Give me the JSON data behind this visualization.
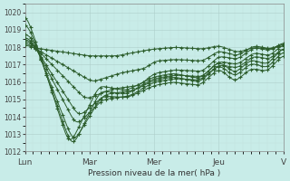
{
  "title": "",
  "xlabel": "Pression niveau de la mer( hPa )",
  "ylabel": "",
  "bg_color": "#c8ece8",
  "grid_color": "#b8d8d4",
  "line_color": "#2d5e2d",
  "ylim": [
    1012,
    1020.5
  ],
  "yticks": [
    1012,
    1013,
    1014,
    1015,
    1016,
    1017,
    1018,
    1019,
    1020
  ],
  "xtick_labels": [
    "Lun",
    "Mar",
    "Mer",
    "Jeu",
    "V"
  ],
  "xtick_positions": [
    0,
    48,
    96,
    144,
    192
  ],
  "figsize": [
    3.2,
    2.0
  ],
  "dpi": 100
}
